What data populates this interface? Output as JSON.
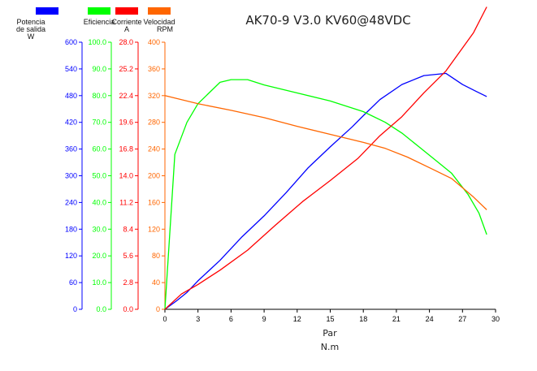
{
  "chart_data": {
    "type": "line",
    "title": "AK70-9 V3.0 KV60@48VDC",
    "xlabel": "Par",
    "xunit": "N.m",
    "xlim": [
      0,
      30
    ],
    "xticks": [
      0,
      3,
      6,
      9,
      12,
      15,
      18,
      21,
      24,
      27,
      30
    ],
    "grid": false,
    "legend_position": "top-left",
    "axes": [
      {
        "name": "Potencia de salida",
        "unit": "W",
        "color": "#0000ff",
        "ylim": [
          0,
          600
        ],
        "ticks": [
          "0",
          "60",
          "120",
          "180",
          "240",
          "300",
          "360",
          "420",
          "480",
          "540",
          "600"
        ]
      },
      {
        "name": "Eficiencia",
        "unit": "",
        "color": "#00ff00",
        "ylim": [
          0,
          100
        ],
        "ticks": [
          "0.0",
          "10.0",
          "20.0",
          "30.0",
          "40.0",
          "50.0",
          "60.0",
          "70.0",
          "80.0",
          "90.0",
          "100.0"
        ]
      },
      {
        "name": "Corriente",
        "unit": "A",
        "color": "#ff0000",
        "ylim": [
          0,
          28
        ],
        "ticks": [
          "0.0",
          "2.8",
          "5.6",
          "8.4",
          "11.2",
          "14.0",
          "16.8",
          "19.6",
          "22.4",
          "25.2",
          "28.0"
        ]
      },
      {
        "name": "Velocidad",
        "unit": "RPM",
        "color": "#ff6600",
        "ylim": [
          0,
          400
        ],
        "ticks": [
          "0",
          "40",
          "80",
          "120",
          "160",
          "200",
          "240",
          "280",
          "320",
          "360",
          "400"
        ]
      }
    ],
    "series": [
      {
        "name": "Potencia de salida",
        "axis": 0,
        "color": "#0000ff",
        "points": [
          [
            0,
            0
          ],
          [
            1,
            18
          ],
          [
            2,
            38
          ],
          [
            3,
            64
          ],
          [
            5,
            110
          ],
          [
            7,
            163
          ],
          [
            9,
            210
          ],
          [
            11,
            262
          ],
          [
            13,
            318
          ],
          [
            15,
            365
          ],
          [
            17,
            410
          ],
          [
            18,
            435
          ],
          [
            19.5,
            471
          ],
          [
            21.5,
            505
          ],
          [
            23.5,
            525
          ],
          [
            25.5,
            530
          ],
          [
            27,
            505
          ],
          [
            28.2,
            490
          ],
          [
            29.2,
            478
          ]
        ]
      },
      {
        "name": "Eficiencia",
        "axis": 1,
        "color": "#00ff00",
        "points": [
          [
            0,
            0
          ],
          [
            0.9,
            58
          ],
          [
            2,
            70
          ],
          [
            3,
            77
          ],
          [
            4,
            81
          ],
          [
            5,
            85
          ],
          [
            6,
            86
          ],
          [
            7.5,
            86
          ],
          [
            9,
            84
          ],
          [
            12,
            81
          ],
          [
            15,
            78
          ],
          [
            18,
            74
          ],
          [
            20,
            70
          ],
          [
            21.5,
            66
          ],
          [
            23,
            61
          ],
          [
            24.5,
            56
          ],
          [
            26,
            51
          ],
          [
            27.5,
            43
          ],
          [
            28.5,
            36
          ],
          [
            29.2,
            28
          ]
        ]
      },
      {
        "name": "Corriente",
        "axis": 2,
        "color": "#ff0000",
        "points": [
          [
            0,
            0
          ],
          [
            1.5,
            1.6
          ],
          [
            3,
            2.6
          ],
          [
            5,
            4.1
          ],
          [
            7.5,
            6.2
          ],
          [
            10,
            8.8
          ],
          [
            12.5,
            11.3
          ],
          [
            15,
            13.5
          ],
          [
            17.5,
            15.8
          ],
          [
            19.5,
            18.2
          ],
          [
            21.5,
            20.2
          ],
          [
            23.5,
            22.7
          ],
          [
            25.5,
            25
          ],
          [
            28,
            29
          ],
          [
            29.2,
            31.7
          ]
        ]
      },
      {
        "name": "Velocidad",
        "axis": 3,
        "color": "#ff6600",
        "points": [
          [
            0,
            320
          ],
          [
            3,
            308
          ],
          [
            6,
            298
          ],
          [
            9,
            287
          ],
          [
            12,
            274
          ],
          [
            15,
            262
          ],
          [
            18,
            250
          ],
          [
            20,
            241
          ],
          [
            22,
            228
          ],
          [
            24,
            212
          ],
          [
            26,
            196
          ],
          [
            28,
            168
          ],
          [
            29.2,
            149
          ]
        ]
      }
    ]
  }
}
